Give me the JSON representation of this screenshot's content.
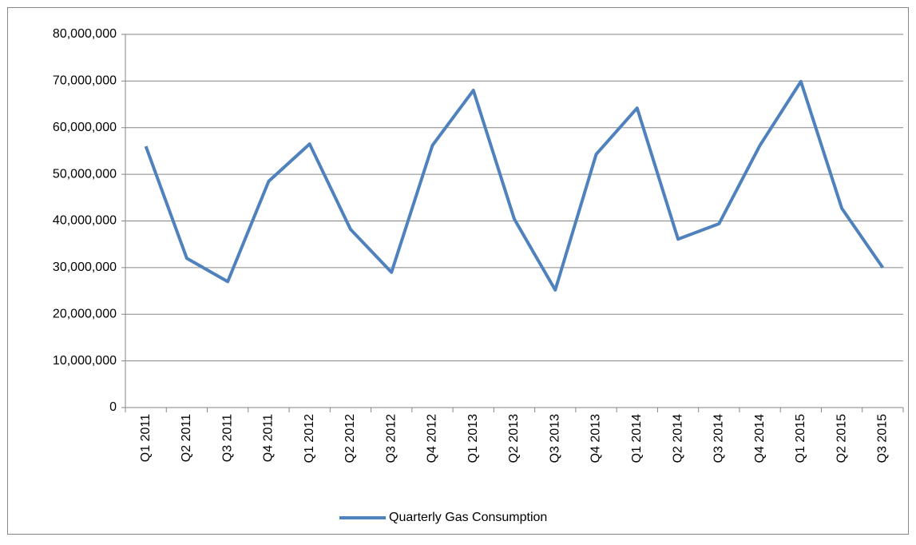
{
  "chart_data": {
    "type": "line",
    "categories": [
      "Q1 2011",
      "Q2 2011",
      "Q3 2011",
      "Q4 2011",
      "Q1 2012",
      "Q2 2012",
      "Q3 2012",
      "Q4 2012",
      "Q1 2013",
      "Q2 2013",
      "Q3 2013",
      "Q4 2013",
      "Q1 2014",
      "Q2 2014",
      "Q3 2014",
      "Q4 2014",
      "Q1 2015",
      "Q2 2015",
      "Q3 2015"
    ],
    "series": [
      {
        "name": "Quarterly Gas Consumption",
        "color": "#4f81bd",
        "values": [
          56000000,
          32000000,
          27000000,
          48500000,
          56500000,
          38200000,
          29000000,
          56200000,
          68000000,
          40400000,
          25200000,
          54300000,
          64200000,
          36100000,
          39400000,
          56200000,
          69900000,
          42700000,
          30000000
        ]
      }
    ],
    "ylim": [
      0,
      80000000
    ],
    "yticks": [
      0,
      {
        "value": 10000000,
        "label": "10,000,000"
      },
      {
        "value": 20000000,
        "label": "20,000,000"
      },
      {
        "value": 30000000,
        "label": "30,000,000"
      },
      {
        "value": 40000000,
        "label": "40,000,000"
      },
      {
        "value": 50000000,
        "label": "50,000,000"
      },
      {
        "value": 60000000,
        "label": "60,000,000"
      },
      {
        "value": 70000000,
        "label": "70,000,000"
      },
      {
        "value": 80000000,
        "label": "80,000,000"
      }
    ],
    "grid": true,
    "legend": "bottom"
  }
}
